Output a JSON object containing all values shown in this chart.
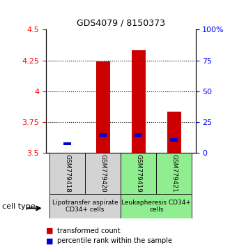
{
  "title": "GDS4079 / 8150373",
  "samples": [
    "GSM779418",
    "GSM779420",
    "GSM779419",
    "GSM779421"
  ],
  "red_values": [
    3.505,
    4.245,
    4.335,
    3.835
  ],
  "blue_values": [
    3.565,
    3.635,
    3.635,
    3.595
  ],
  "ymin": 3.5,
  "ymax": 4.5,
  "yticks_left": [
    3.5,
    3.75,
    4.0,
    4.25,
    4.5
  ],
  "yticks_right": [
    0,
    25,
    50,
    75,
    100
  ],
  "ytick_labels_left": [
    "3.5",
    "3.75",
    "4",
    "4.25",
    "4.5"
  ],
  "ytick_labels_right": [
    "0",
    "25",
    "50",
    "75",
    "100%"
  ],
  "grid_values": [
    3.75,
    4.0,
    4.25
  ],
  "bar_width": 0.4,
  "red_color": "#cc0000",
  "blue_color": "#0000cc",
  "group1_label": "Lipotransfer aspirate\nCD34+ cells",
  "group2_label": "Leukapheresis CD34+\ncells",
  "group1_indices": [
    0,
    1
  ],
  "group2_indices": [
    2,
    3
  ],
  "group1_color": "#d3d3d3",
  "group2_color": "#90ee90",
  "cell_type_label": "cell type",
  "legend_red": "transformed count",
  "legend_blue": "percentile rank within the sample",
  "base_value": 3.5
}
